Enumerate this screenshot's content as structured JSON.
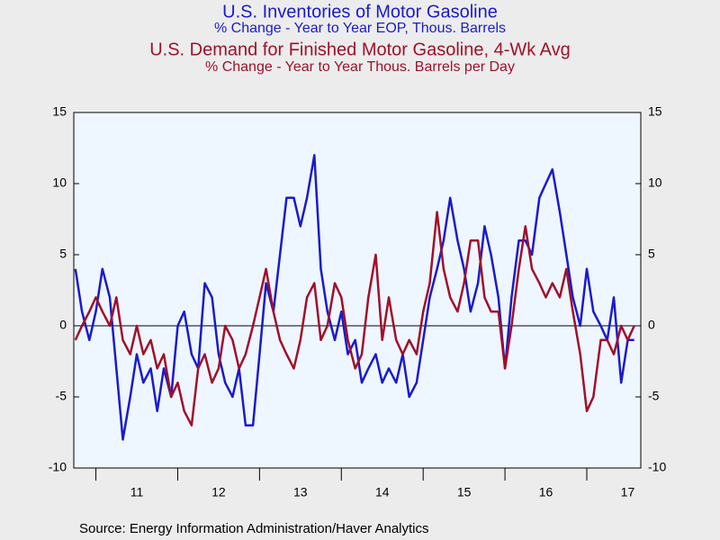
{
  "chart_data": {
    "type": "line",
    "titles": [
      {
        "text": "U.S. Inventories of Motor Gasoline",
        "color": "#1a1acc"
      },
      {
        "text": "% Change - Year to Year    EOP, Thous. Barrels",
        "color": "#1a1acc"
      },
      {
        "text": "U.S. Demand for Finished Motor Gasoline, 4-Wk Avg",
        "color": "#a0102a"
      },
      {
        "text": "% Change - Year to Year    Thous. Barrels per Day",
        "color": "#a0102a"
      }
    ],
    "source": "Source:  Energy Information Administration/Haver Analytics",
    "x": [
      2010.75,
      2010.83,
      2010.92,
      2011,
      2011.08,
      2011.17,
      2011.25,
      2011.33,
      2011.42,
      2011.5,
      2011.58,
      2011.67,
      2011.75,
      2011.83,
      2011.92,
      2012,
      2012.08,
      2012.17,
      2012.25,
      2012.33,
      2012.42,
      2012.5,
      2012.58,
      2012.67,
      2012.75,
      2012.83,
      2012.92,
      2013,
      2013.08,
      2013.17,
      2013.25,
      2013.33,
      2013.42,
      2013.5,
      2013.58,
      2013.67,
      2013.75,
      2013.83,
      2013.92,
      2014,
      2014.08,
      2014.17,
      2014.25,
      2014.33,
      2014.42,
      2014.5,
      2014.58,
      2014.67,
      2014.75,
      2014.83,
      2014.92,
      2015,
      2015.08,
      2015.17,
      2015.25,
      2015.33,
      2015.42,
      2015.5,
      2015.58,
      2015.67,
      2015.75,
      2015.83,
      2015.92,
      2016,
      2016.08,
      2016.17,
      2016.25,
      2016.33,
      2016.42,
      2016.5,
      2016.58,
      2016.67,
      2016.75,
      2016.83,
      2016.92,
      2017,
      2017.08,
      2017.17,
      2017.25,
      2017.33,
      2017.42,
      2017.5,
      2017.58
    ],
    "series": [
      {
        "color": "#1a1acc",
        "values": [
          4,
          1,
          -1,
          1,
          4,
          2,
          -3,
          -8,
          -5,
          -2,
          -4,
          -3,
          -6,
          -3,
          -5,
          0,
          1,
          -2,
          -3,
          3,
          2,
          -2,
          -4,
          -5,
          -3,
          -7,
          -7,
          -2,
          3,
          1,
          5,
          9,
          9,
          7,
          9,
          12,
          4,
          1,
          -1,
          1,
          -2,
          -1,
          -4,
          -3,
          -2,
          -4,
          -3,
          -4,
          -2,
          -5,
          -4,
          -1,
          2,
          4,
          6,
          9,
          6,
          4,
          1,
          3,
          7,
          5,
          2,
          -3,
          2,
          6,
          6,
          5,
          9,
          10,
          11,
          8,
          5,
          2,
          0,
          4,
          1,
          0,
          -1,
          2,
          -4,
          -1,
          -1
        ]
      },
      {
        "color": "#a0102a",
        "values": [
          -1,
          0,
          1,
          2,
          1,
          0,
          2,
          -1,
          -2,
          0,
          -2,
          -1,
          -3,
          -2,
          -5,
          -4,
          -6,
          -7,
          -3,
          -2,
          -4,
          -3,
          0,
          -1,
          -3,
          -2,
          0,
          2,
          4,
          1,
          -1,
          -2,
          -3,
          -1,
          2,
          3,
          -1,
          0,
          3,
          2,
          -1,
          -3,
          -2,
          2,
          5,
          -1,
          2,
          -1,
          -2,
          -1,
          -2,
          1,
          3,
          8,
          4,
          2,
          1,
          3,
          6,
          6,
          2,
          1,
          1,
          -3,
          0,
          4,
          7,
          4,
          3,
          2,
          3,
          2,
          4,
          1,
          -2,
          -6,
          -5,
          -1,
          -1,
          -2,
          0,
          -1,
          0
        ]
      }
    ],
    "xlim": [
      2010.73,
      2017.66
    ],
    "xticks": [
      {
        "value": 2011.5,
        "label": "11"
      },
      {
        "value": 2012.5,
        "label": "12"
      },
      {
        "value": 2013.5,
        "label": "13"
      },
      {
        "value": 2014.5,
        "label": "14"
      },
      {
        "value": 2015.5,
        "label": "15"
      },
      {
        "value": 2016.5,
        "label": "16"
      },
      {
        "value": 2017.5,
        "label": "17"
      }
    ],
    "ylim": [
      -10,
      15
    ],
    "yticks": [
      15,
      10,
      5,
      0,
      -5,
      -10
    ],
    "y2lim": [
      -10,
      15
    ],
    "y2ticks": [
      15,
      10,
      5,
      0,
      -5,
      -10
    ]
  }
}
